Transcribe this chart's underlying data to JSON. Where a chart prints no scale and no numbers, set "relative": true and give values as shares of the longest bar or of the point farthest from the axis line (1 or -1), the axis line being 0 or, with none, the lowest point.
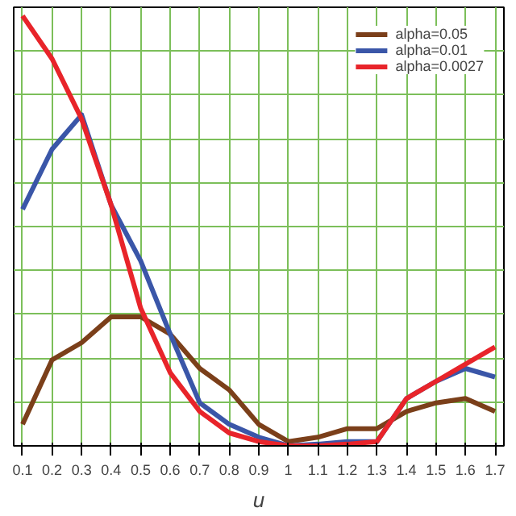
{
  "chart_data": {
    "type": "line",
    "xlabel": "u",
    "relative": true,
    "grid": true,
    "legend": "top right",
    "line_style": "solid",
    "categories": [
      "0.1",
      "0.2",
      "0.3",
      "0.4",
      "0.5",
      "0.6",
      "0.7",
      "0.8",
      "0.9",
      "1",
      "1.1",
      "1.2",
      "1.3",
      "1.4",
      "1.5",
      "1.6",
      "1.7"
    ],
    "series": [
      {
        "name": "alpha=0.05",
        "color": "#7b3f1a",
        "values": [
          0.05,
          0.2,
          0.24,
          0.3,
          0.3,
          0.26,
          0.18,
          0.13,
          0.05,
          0.01,
          0.02,
          0.04,
          0.04,
          0.08,
          0.1,
          0.11,
          0.08
        ]
      },
      {
        "name": "alpha=0.01",
        "color": "#3a56a8",
        "values": [
          0.55,
          0.69,
          0.77,
          0.56,
          0.43,
          0.26,
          0.1,
          0.05,
          0.02,
          0,
          0.004,
          0.01,
          0.01,
          0.11,
          0.15,
          0.18,
          0.16
        ]
      },
      {
        "name": "alpha=0.0027",
        "color": "#e8242a",
        "values": [
          1,
          0.9,
          0.76,
          0.56,
          0.32,
          0.17,
          0.08,
          0.03,
          0.01,
          0,
          0,
          0.004,
          0.01,
          0.11,
          0.15,
          0.19,
          0.23
        ]
      }
    ]
  }
}
